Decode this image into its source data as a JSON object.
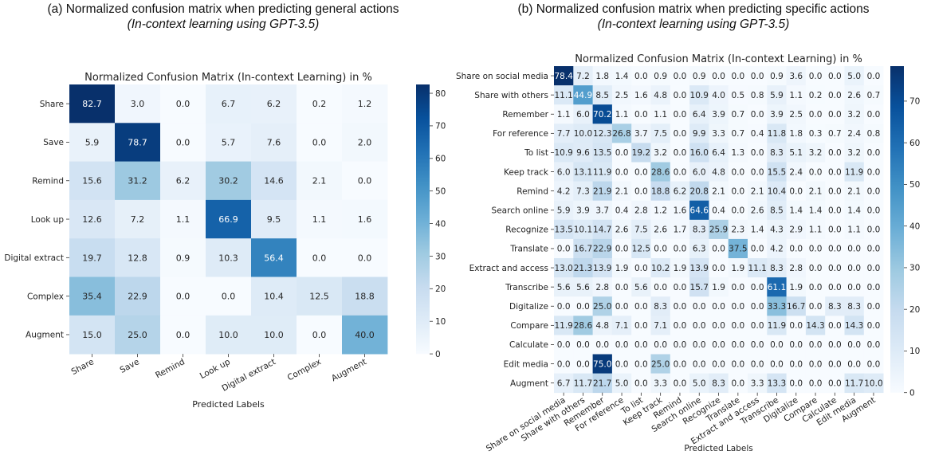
{
  "captions": {
    "left": {
      "main": "(a) Normalized confusion matrix when predicting general actions",
      "sub": "(In-context learning using GPT-3.5)"
    },
    "right": {
      "main": "(b) Normalized confusion matrix when predicting specific actions",
      "sub": "(In-context learning using GPT-3.5)"
    }
  },
  "colormap": {
    "name": "Blues",
    "low": "#f7fbff",
    "high": "#08306b"
  },
  "chart_data": [
    {
      "type": "heatmap",
      "title": "Normalized Confusion Matrix (In-context Learning) in %",
      "xlabel": "Predicted Labels",
      "ylabel": "",
      "x_categories": [
        "Share",
        "Save",
        "Remind",
        "Look up",
        "Digital extract",
        "Complex",
        "Augment"
      ],
      "y_categories": [
        "Share",
        "Save",
        "Remind",
        "Look up",
        "Digital extract",
        "Complex",
        "Augment"
      ],
      "values": [
        [
          82.7,
          3.0,
          0.0,
          6.7,
          6.2,
          0.2,
          1.2
        ],
        [
          5.9,
          78.7,
          0.0,
          5.7,
          7.6,
          0.0,
          2.0
        ],
        [
          15.6,
          31.2,
          6.2,
          30.2,
          14.6,
          2.1,
          0.0
        ],
        [
          12.6,
          7.2,
          1.1,
          66.9,
          9.5,
          1.1,
          1.6
        ],
        [
          19.7,
          12.8,
          0.9,
          10.3,
          56.4,
          0.0,
          0.0
        ],
        [
          35.4,
          22.9,
          0.0,
          0.0,
          10.4,
          12.5,
          18.8
        ],
        [
          15.0,
          25.0,
          0.0,
          10.0,
          10.0,
          0.0,
          40.0
        ]
      ],
      "colorbar": {
        "min": 0,
        "max": 82.7,
        "ticks": [
          0,
          10,
          20,
          30,
          40,
          50,
          60,
          70,
          80
        ]
      }
    },
    {
      "type": "heatmap",
      "title": "Normalized Confusion Matrix (In-context Learning) in %",
      "xlabel": "Predicted Labels",
      "ylabel": "",
      "x_categories": [
        "Share on social media",
        "Share with others",
        "Remember",
        "For reference",
        "To list",
        "Keep track",
        "Remind",
        "Search online",
        "Recognize",
        "Translate",
        "Extract and access",
        "Transcribe",
        "Digitalize",
        "Compare",
        "Calculate",
        "Edit media",
        "Augment"
      ],
      "y_categories": [
        "Share on social media",
        "Share with others",
        "Remember",
        "For reference",
        "To list",
        "Keep track",
        "Remind",
        "Search online",
        "Recognize",
        "Translate",
        "Extract and access",
        "Transcribe",
        "Digitalize",
        "Compare",
        "Calculate",
        "Edit media",
        "Augment"
      ],
      "values": [
        [
          78.4,
          7.2,
          1.8,
          1.4,
          0.0,
          0.9,
          0.0,
          0.9,
          0.0,
          0.0,
          0.0,
          0.9,
          3.6,
          0.0,
          0.0,
          5.0,
          0.0
        ],
        [
          11.1,
          44.9,
          8.5,
          2.5,
          1.6,
          4.8,
          0.0,
          10.9,
          4.0,
          0.5,
          0.8,
          5.9,
          1.1,
          0.2,
          0.0,
          2.6,
          0.7
        ],
        [
          1.1,
          6.0,
          70.2,
          1.1,
          0.0,
          1.1,
          0.0,
          6.4,
          3.9,
          0.7,
          0.0,
          3.9,
          2.5,
          0.0,
          0.0,
          3.2,
          0.0
        ],
        [
          7.7,
          10.0,
          12.3,
          26.8,
          3.7,
          7.5,
          0.0,
          9.9,
          3.3,
          0.7,
          0.4,
          11.8,
          1.8,
          0.3,
          0.7,
          2.4,
          0.8
        ],
        [
          10.9,
          9.6,
          13.5,
          0.0,
          19.2,
          3.2,
          0.0,
          16.0,
          6.4,
          1.3,
          0.0,
          8.3,
          5.1,
          3.2,
          0.0,
          3.2,
          0.0
        ],
        [
          6.0,
          13.1,
          11.9,
          0.0,
          0.0,
          28.6,
          0.0,
          6.0,
          4.8,
          0.0,
          0.0,
          15.5,
          2.4,
          0.0,
          0.0,
          11.9,
          0.0
        ],
        [
          4.2,
          7.3,
          21.9,
          2.1,
          0.0,
          18.8,
          6.2,
          20.8,
          2.1,
          0.0,
          2.1,
          10.4,
          0.0,
          2.1,
          0.0,
          2.1,
          0.0
        ],
        [
          5.9,
          3.9,
          3.7,
          0.4,
          2.8,
          1.2,
          1.6,
          64.6,
          0.4,
          0.0,
          2.6,
          8.5,
          1.4,
          1.4,
          0.0,
          1.4,
          0.0
        ],
        [
          13.5,
          10.1,
          14.7,
          2.6,
          7.5,
          2.6,
          1.7,
          8.3,
          25.9,
          2.3,
          1.4,
          4.3,
          2.9,
          1.1,
          0.0,
          1.1,
          0.0
        ],
        [
          0.0,
          16.7,
          22.9,
          0.0,
          12.5,
          0.0,
          0.0,
          6.3,
          0.0,
          37.5,
          0.0,
          4.2,
          0.0,
          0.0,
          0.0,
          0.0,
          0.0
        ],
        [
          13.0,
          21.3,
          13.9,
          1.9,
          0.0,
          10.2,
          1.9,
          13.9,
          0.0,
          1.9,
          11.1,
          8.3,
          2.8,
          0.0,
          0.0,
          0.0,
          0.0
        ],
        [
          5.6,
          5.6,
          2.8,
          0.0,
          5.6,
          0.0,
          0.0,
          15.7,
          1.9,
          0.0,
          0.0,
          61.1,
          1.9,
          0.0,
          0.0,
          0.0,
          0.0
        ],
        [
          0.0,
          0.0,
          25.0,
          0.0,
          0.0,
          8.3,
          0.0,
          0.0,
          0.0,
          0.0,
          0.0,
          33.3,
          16.7,
          0.0,
          8.3,
          8.3,
          0.0
        ],
        [
          11.9,
          28.6,
          4.8,
          7.1,
          0.0,
          7.1,
          0.0,
          0.0,
          0.0,
          0.0,
          0.0,
          11.9,
          0.0,
          14.3,
          0.0,
          14.3,
          0.0
        ],
        [
          0.0,
          0.0,
          0.0,
          0.0,
          0.0,
          0.0,
          0.0,
          0.0,
          0.0,
          0.0,
          0.0,
          0.0,
          0.0,
          0.0,
          0.0,
          0.0,
          0.0
        ],
        [
          0.0,
          0.0,
          75.0,
          0.0,
          0.0,
          25.0,
          0.0,
          0.0,
          0.0,
          0.0,
          0.0,
          0.0,
          0.0,
          0.0,
          0.0,
          0.0,
          0.0
        ],
        [
          6.7,
          11.7,
          21.7,
          5.0,
          0.0,
          3.3,
          0.0,
          5.0,
          8.3,
          0.0,
          3.3,
          13.3,
          0.0,
          0.0,
          0.0,
          11.7,
          10.0
        ]
      ],
      "colorbar": {
        "min": 0,
        "max": 78.4,
        "ticks": [
          0,
          10,
          20,
          30,
          40,
          50,
          60,
          70
        ]
      }
    }
  ]
}
